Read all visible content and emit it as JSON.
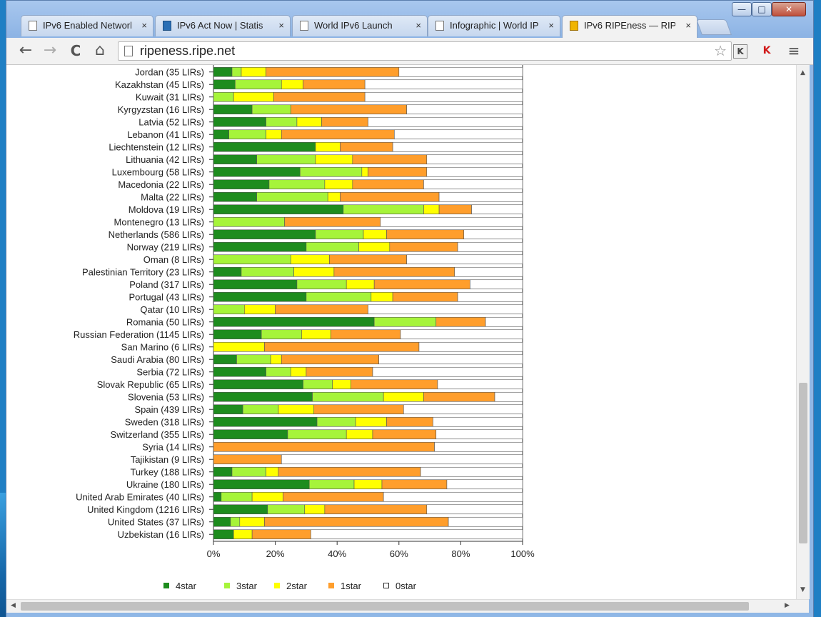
{
  "browser": {
    "tabs": [
      {
        "label": "IPv6 Enabled Network",
        "active": false,
        "icon": "page-icon"
      },
      {
        "label": "IPv6 Act Now | Statis",
        "active": false,
        "icon": "ipv6-logo-icon"
      },
      {
        "label": "World IPv6 Launch",
        "active": false,
        "icon": "page-icon"
      },
      {
        "label": "Infographic | World IP",
        "active": false,
        "icon": "page-icon"
      },
      {
        "label": "IPv6 RIPEness — RIP",
        "active": true,
        "icon": "ripe-logo-icon"
      }
    ],
    "close_glyph": "×",
    "url": "ripeness.ripe.net",
    "window_buttons": {
      "minimize": "—",
      "maximize": "□",
      "close": "✕"
    },
    "nav": {
      "back": "←",
      "forward": "→",
      "reload": "C",
      "home": "⌂"
    },
    "star": "☆",
    "extensions": [
      "K",
      "K"
    ],
    "menu": "≡"
  },
  "chart_data": {
    "type": "bar",
    "orientation": "horizontal",
    "stacked": true,
    "unit": "percent",
    "xlim": [
      0,
      100
    ],
    "xticks": [
      "0%",
      "20%",
      "40%",
      "60%",
      "80%",
      "100%"
    ],
    "legend_position": "bottom",
    "colors": {
      "4star": "#1e8c1e",
      "3star": "#a6f43a",
      "2star": "#ffff00",
      "1star": "#ff9e2c",
      "0star": "#ffffff"
    },
    "legend": [
      "4star",
      "3star",
      "2star",
      "1star",
      "0star"
    ],
    "categories": [
      "Jordan (35 LIRs)",
      "Kazakhstan (45 LIRs)",
      "Kuwait (31 LIRs)",
      "Kyrgyzstan (16 LIRs)",
      "Latvia (52 LIRs)",
      "Lebanon (41 LIRs)",
      "Liechtenstein (12 LIRs)",
      "Lithuania (42 LIRs)",
      "Luxembourg (58 LIRs)",
      "Macedonia (22 LIRs)",
      "Malta (22 LIRs)",
      "Moldova (19 LIRs)",
      "Montenegro (13 LIRs)",
      "Netherlands (586 LIRs)",
      "Norway (219 LIRs)",
      "Oman (8 LIRs)",
      "Palestinian Territory (23 LIRs)",
      "Poland (317 LIRs)",
      "Portugal (43 LIRs)",
      "Qatar (10 LIRs)",
      "Romania (50 LIRs)",
      "Russian Federation (1145 LIRs)",
      "San Marino (6 LIRs)",
      "Saudi Arabia (80 LIRs)",
      "Serbia (72 LIRs)",
      "Slovak Republic (65 LIRs)",
      "Slovenia (53 LIRs)",
      "Spain (439 LIRs)",
      "Sweden (318 LIRs)",
      "Switzerland (355 LIRs)",
      "Syria (14 LIRs)",
      "Tajikistan (9 LIRs)",
      "Turkey (188 LIRs)",
      "Ukraine (180 LIRs)",
      "United Arab Emirates (40 LIRs)",
      "United Kingdom (1216 LIRs)",
      "United States (37 LIRs)",
      "Uzbekistan (16 LIRs)"
    ],
    "series": [
      {
        "name": "4star",
        "values": [
          6,
          7,
          0,
          12.5,
          17,
          5,
          33,
          14,
          28,
          18,
          14,
          42,
          0,
          33,
          30,
          0,
          9,
          27,
          30,
          0,
          52,
          15.5,
          0,
          7.5,
          17,
          29,
          32,
          9.5,
          33.5,
          24,
          0,
          0,
          6,
          31,
          2.5,
          17.5,
          5.5,
          6.5
        ]
      },
      {
        "name": "3star",
        "values": [
          3,
          15,
          6.5,
          12.5,
          10,
          12,
          0,
          19,
          20,
          18,
          23,
          26,
          23,
          15.5,
          17,
          25,
          17,
          16,
          21,
          10,
          20,
          13,
          0,
          11,
          8,
          9.5,
          23,
          11.5,
          12.5,
          19,
          0,
          0,
          11,
          14.5,
          10,
          12,
          3,
          0
        ]
      },
      {
        "name": "2star",
        "values": [
          8,
          7,
          13,
          0,
          8,
          5,
          8,
          12,
          2,
          9,
          4,
          5,
          0,
          7.5,
          10,
          12.5,
          13,
          9,
          7,
          10,
          0,
          9.5,
          16.5,
          3.5,
          5,
          6,
          13,
          11.5,
          10,
          8.5,
          0,
          0,
          4,
          9,
          10,
          6.5,
          8,
          6
        ]
      },
      {
        "name": "1star",
        "values": [
          43,
          20,
          29.5,
          37.5,
          15,
          36.5,
          17,
          24,
          19,
          23,
          32,
          10.5,
          31,
          25,
          22,
          25,
          39,
          31,
          21,
          30,
          16,
          22.5,
          50,
          31.5,
          21.5,
          28,
          23,
          29,
          15,
          20.5,
          71.5,
          22,
          46,
          21,
          32.5,
          33,
          59.5,
          19
        ]
      },
      {
        "name": "0star",
        "values": [
          40,
          51,
          51,
          37.5,
          50,
          41.5,
          42,
          31,
          31,
          32,
          27,
          16.5,
          46,
          19,
          21,
          37.5,
          22,
          17,
          21,
          50,
          12,
          39.5,
          33.5,
          46.5,
          48.5,
          27.5,
          9,
          38.5,
          29,
          28,
          28.5,
          78,
          33,
          24.5,
          45,
          31,
          24,
          68.5
        ]
      }
    ]
  }
}
